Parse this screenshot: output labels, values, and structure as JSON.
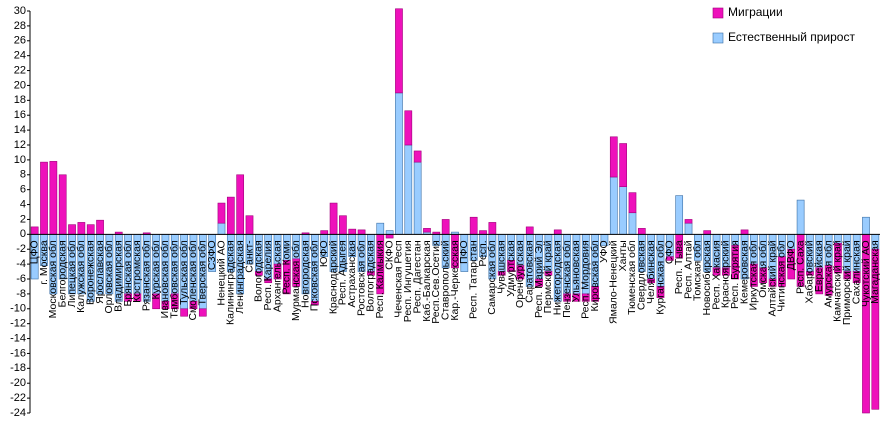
{
  "chart_data": {
    "type": "stacked_bar",
    "categories": [
      "ЦФО",
      "г. Москва",
      "Московская обл",
      "Белгородская",
      "Липецкая обл",
      "Калужская обл",
      "Воронежская",
      "Ярославская",
      "Орловская обл",
      "Владимирская",
      "Брянская обл",
      "Костромская",
      "Рязанская обл",
      "Курская обл",
      "Ивановская обл",
      "Тамбовская обл",
      "Тульская обл",
      "Смоленская обл",
      "Тверская обл",
      "СЗФО",
      "Ненецкий АО",
      "Калининградская",
      "Ленинградская",
      "Санкт-",
      "Вологодская",
      "Респ. Карелия",
      "Архангельская",
      "Респ. Коми",
      "Мурманская обл",
      "Новгородская",
      "Псковская обл",
      "ЮФО",
      "Краснодарский",
      "Респ. Адыгея",
      "Астраханская",
      "Ростовская обл",
      "Волгоградская",
      "Респ. Калмыкия",
      "СКФО",
      "Чеченская Респ",
      "Респ. Ингушетия",
      "Респ. Дагестан",
      "Каб.-Балкарская",
      "Респ.Сев.Осетия",
      "Ставропольский",
      "Кар.-Черкесская",
      "ПФО",
      "Респ. Татарстан",
      "Респ.",
      "Самарская обл",
      "Чувашская",
      "Удмуртская",
      "Оренбургская",
      "Саратовская",
      "Респ. Марий Эл",
      "Пермский край",
      "Нижегородская",
      "Пензенская обл",
      "Ульяновская",
      "Респ. Мордовия",
      "Кировская обл",
      "УФО",
      "Ямало-Ненецкий",
      "Ханты",
      "Тюменская обл",
      "Свердловская",
      "Челябинская",
      "Курганская обл",
      "СФО",
      "Респ. Тыва",
      "Респ. Алтай",
      "Томская обл",
      "Новосибирская",
      "Респ. Хакасия",
      "Красноярский",
      "Респ. Бурятия",
      "Кемеровская",
      "Иркутская обл",
      "Омская обл",
      "Алтайский край",
      "Читинская обл",
      "ДВФО",
      "Респ. Саха",
      "Хабаровский",
      "Еврейская",
      "Амурская обл",
      "Камчатский край",
      "Приморский край",
      "Сахалинская",
      "Чукотский АО",
      "Магаданская"
    ],
    "series": [
      {
        "name": "Естественный прирост",
        "color": "#99ccff",
        "values": [
          -6,
          -4.2,
          -8,
          -6,
          -8,
          -8,
          -9,
          -8,
          -8,
          -9,
          -8,
          -8,
          -9,
          -8,
          -9,
          -8,
          -10,
          -9,
          -10,
          -5,
          1.5,
          -5,
          -8,
          -4,
          -5,
          -6,
          -4,
          -3.5,
          -3.3,
          -8,
          -9,
          -3,
          -5,
          -5,
          -3,
          -5,
          -5,
          1.5,
          0.5,
          19,
          12,
          9.7,
          0.3,
          -1.5,
          -4.5,
          0.3,
          -5,
          -3.5,
          -3,
          -6,
          -5,
          -3.5,
          -4.2,
          -7,
          -6,
          -5,
          -9,
          -8,
          -8,
          -8,
          -7,
          -1.5,
          7.7,
          6.4,
          2.9,
          -5,
          -6,
          -7,
          -3,
          5.2,
          1.5,
          -3.5,
          -5,
          -4.5,
          -4.5,
          -1.5,
          -6,
          -4,
          -4.5,
          -6,
          -3,
          -2,
          4.6,
          -5,
          -4.5,
          -4.2,
          -1.2,
          -5,
          -5,
          2.3,
          -2
        ]
      },
      {
        "name": "Миграции",
        "color": "#ee11bb",
        "values": [
          1,
          9.7,
          9.8,
          8,
          1.3,
          1.6,
          1.3,
          1.9,
          0,
          0.3,
          -1,
          -1,
          0.2,
          -2,
          -1,
          -2,
          -1,
          -1,
          -1,
          0,
          2.7,
          5,
          8,
          2.5,
          -0.5,
          -0.5,
          -2,
          -4.5,
          -3.7,
          0.2,
          -0.5,
          0.5,
          4.2,
          2.5,
          0.7,
          0.6,
          -0.5,
          -8,
          -0.5,
          11.3,
          4.6,
          1.5,
          0.5,
          0.3,
          2,
          -4.5,
          0,
          2.3,
          0.5,
          1.6,
          -0.5,
          -1.5,
          -1.8,
          1,
          -1,
          -0.5,
          0.6,
          -1,
          -1,
          -1,
          -2,
          0,
          5.4,
          5.8,
          2.7,
          0.8,
          -0.5,
          -1.5,
          -0.5,
          -3.2,
          0.5,
          0,
          0.5,
          -1,
          -1,
          -4.5,
          0.6,
          -3,
          -2,
          -1,
          -4,
          -4,
          -7,
          -0.5,
          -3.5,
          -4,
          -4,
          -1,
          -1.5,
          -24,
          -21.5
        ]
      }
    ],
    "ylim": [
      -24,
      30
    ],
    "yticks": [
      -24,
      -22,
      -20,
      -18,
      -16,
      -14,
      -12,
      -10,
      -8,
      -6,
      -4,
      -2,
      0,
      2,
      4,
      6,
      8,
      10,
      12,
      14,
      16,
      18,
      20,
      22,
      24,
      26,
      28,
      30
    ],
    "grid": false
  }
}
